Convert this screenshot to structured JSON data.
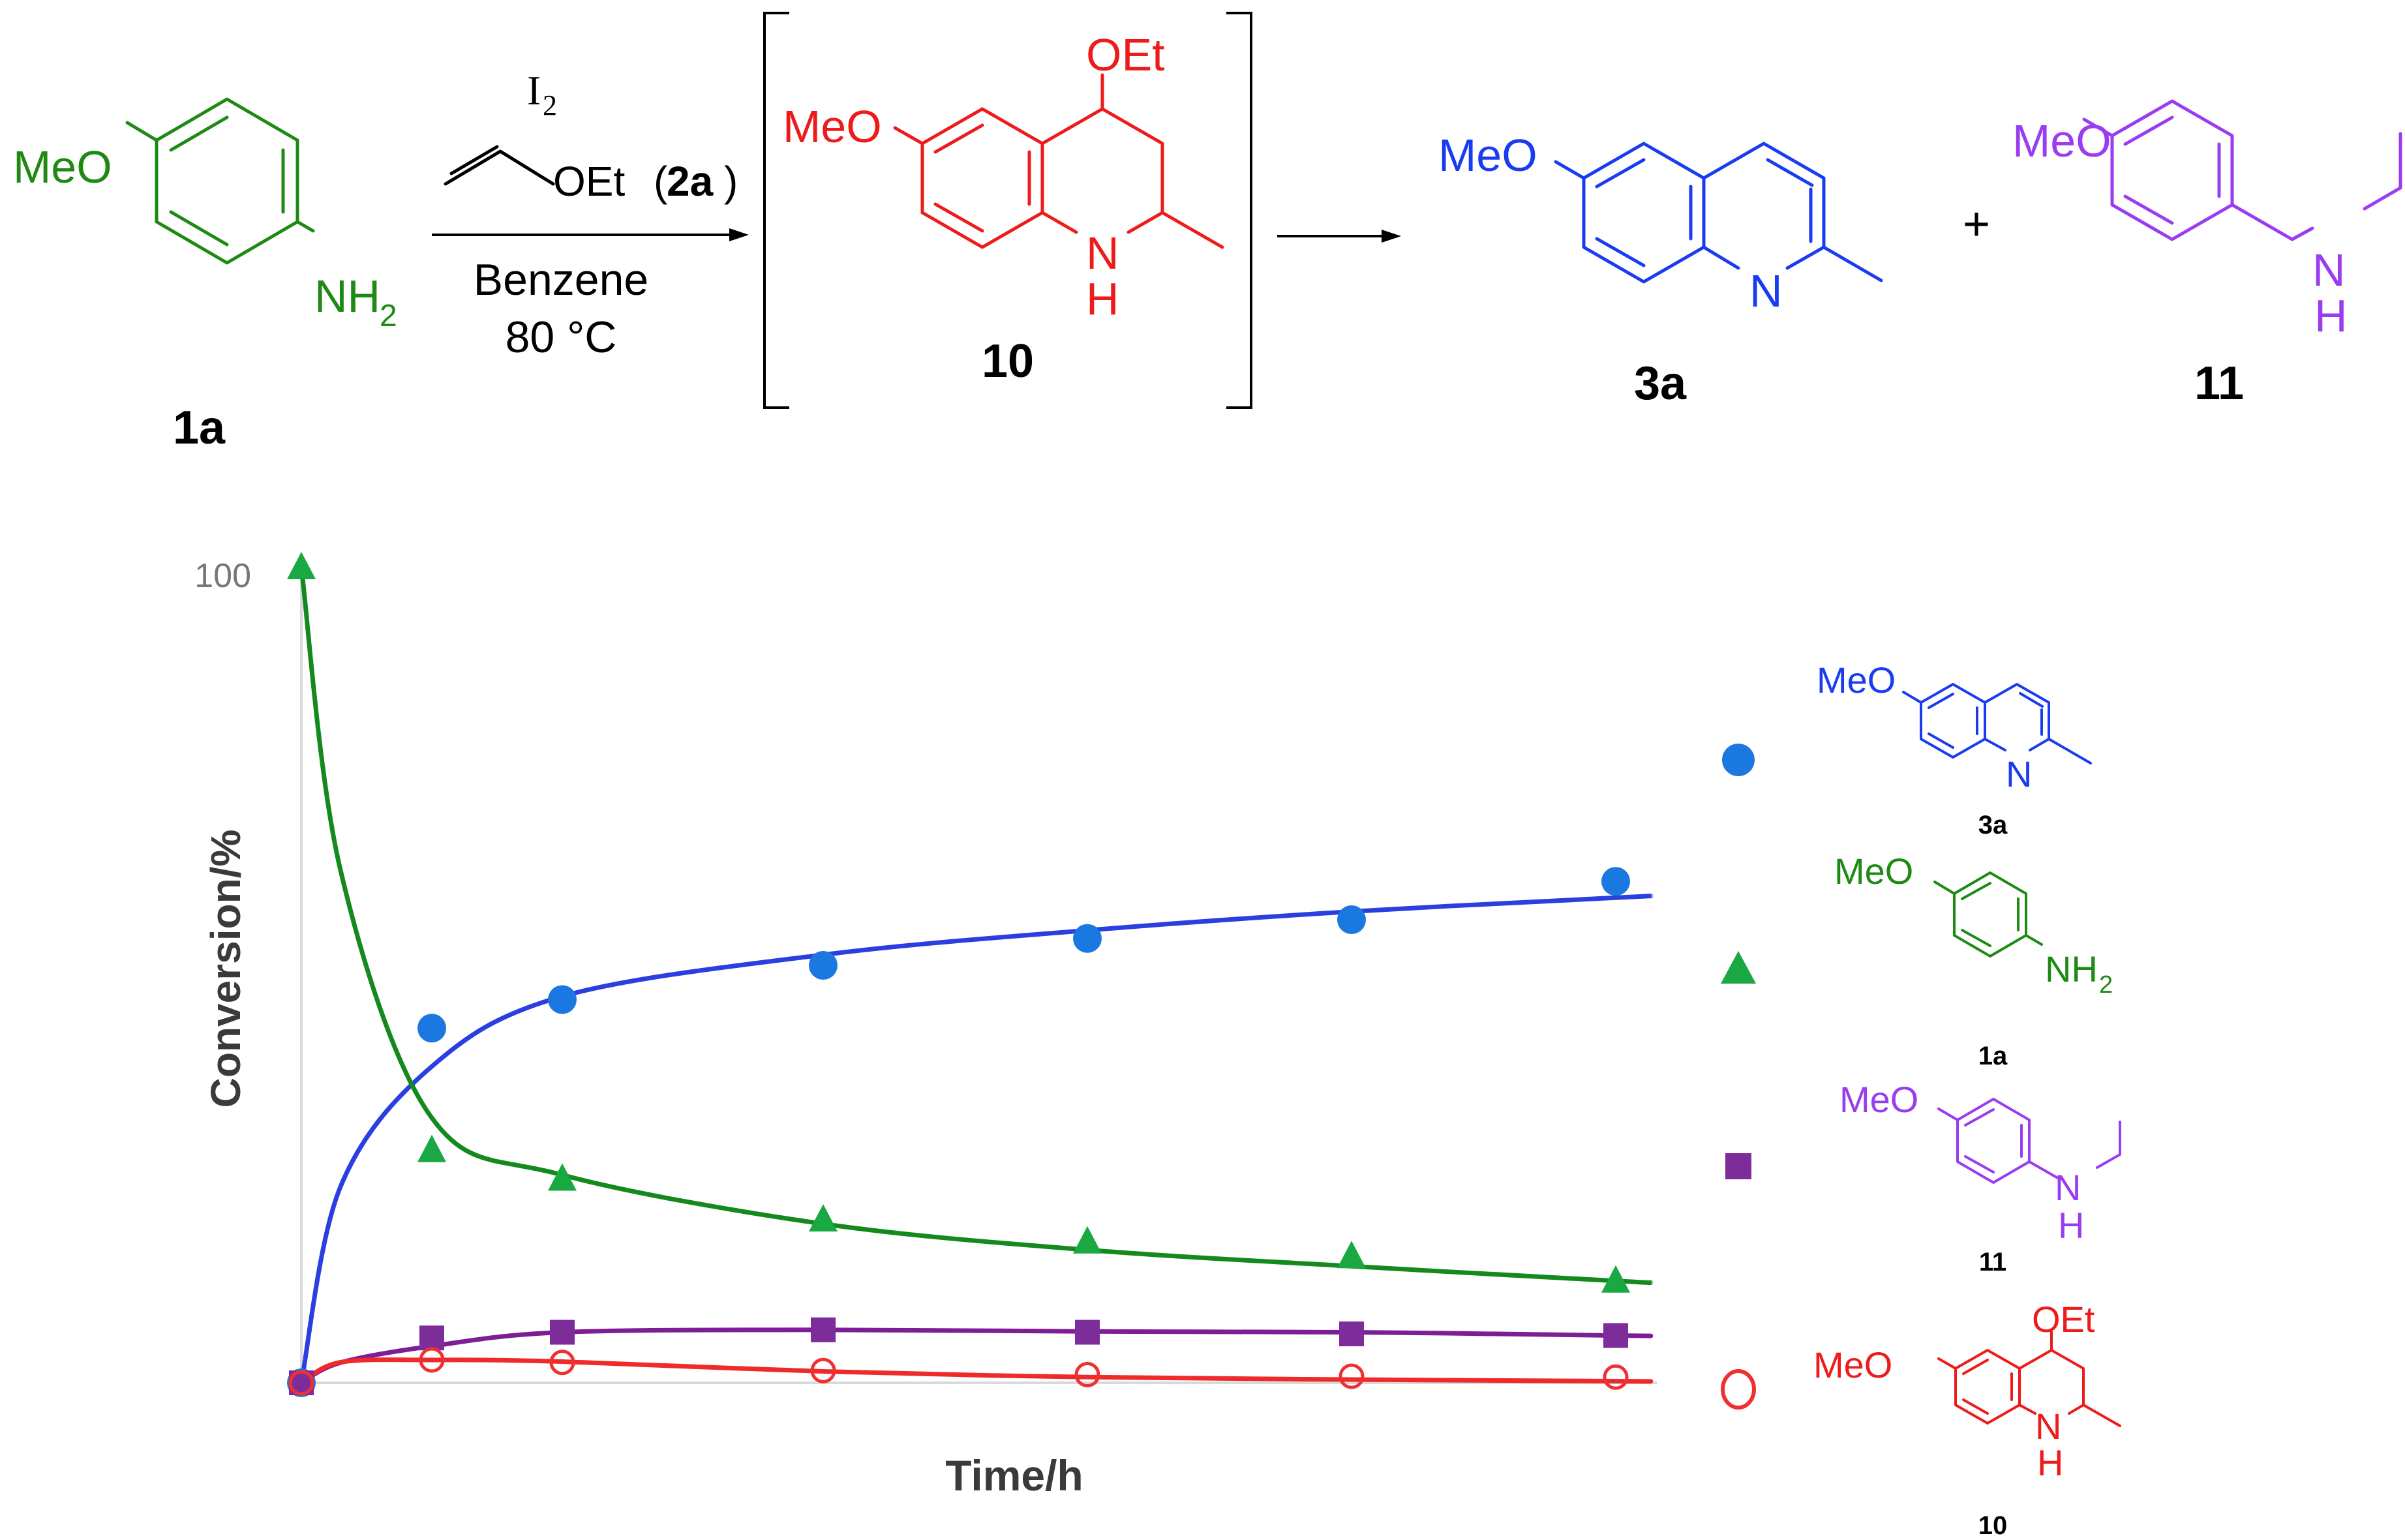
{
  "colors": {
    "quinoline": "#1a3cf0",
    "aniline": "#1e8a14",
    "ethylaniline": "#9a3cf0",
    "intermediate": "#ee1b1b",
    "fit_blue": "#2b3fe0",
    "fit_green": "#148a1e",
    "fit_purple": "#7d1e96",
    "fit_red": "#ee2a2a",
    "marker_blue": "#1b78e0",
    "marker_green": "#1aa843",
    "marker_purple": "#7d2d9a",
    "marker_red": "#f03030"
  },
  "scheme": {
    "reagent": "I",
    "reagent_sub": "2",
    "vinyl_ether_group": "OEt",
    "reagent_label_open": "(",
    "reagent_label_bold": "2a",
    "reagent_label_close": ")",
    "solvent": "Benzene",
    "temperature": "80 °C",
    "plus": "+",
    "compounds": {
      "c1a": {
        "label": "1a",
        "meo": "MeO",
        "amine": "NH",
        "amine_sub": "2"
      },
      "c10": {
        "label": "10",
        "meo": "MeO",
        "oet": "OEt",
        "n": "N",
        "h": "H"
      },
      "c3a": {
        "label": "3a",
        "meo": "MeO",
        "n": "N"
      },
      "c11": {
        "label": "11",
        "meo": "MeO",
        "n": "N",
        "h": "H"
      }
    }
  },
  "chart_data": {
    "type": "scatter",
    "title": "",
    "xlabel": "Time/h",
    "ylabel": "Conversion/%",
    "ylim": [
      0,
      100
    ],
    "xlim": [
      0,
      10
    ],
    "y_tick_labels": [
      "100"
    ],
    "x_tick_labels": [],
    "grid": false,
    "legend_position": "right",
    "x": [
      0,
      1,
      2,
      4,
      6,
      8,
      10
    ],
    "series": [
      {
        "name": "3a",
        "marker": "filled-circle",
        "values": [
          0,
          43.5,
          47,
          51.2,
          54.5,
          56.8,
          61.5
        ]
      },
      {
        "name": "1a",
        "marker": "filled-triangle",
        "values": [
          100,
          28.5,
          25,
          20,
          17.3,
          15.5,
          12.5
        ]
      },
      {
        "name": "11",
        "marker": "filled-square",
        "values": [
          0,
          5.5,
          6.2,
          6.5,
          6.2,
          6,
          5.8
        ]
      },
      {
        "name": "10",
        "marker": "open-circle",
        "values": [
          0,
          2.8,
          2.5,
          1.5,
          1,
          0.8,
          0.7
        ]
      }
    ],
    "fitted_curves": [
      {
        "name": "3a",
        "values": [
          0,
          38.8,
          47.4,
          52.5,
          55.5,
          57.8,
          59.5
        ]
      },
      {
        "name": "1a",
        "values": [
          100,
          32.5,
          25.5,
          19.5,
          16.3,
          14.3,
          12.5
        ]
      },
      {
        "name": "11",
        "values": [
          0,
          4.5,
          6.2,
          6.5,
          6.3,
          6.2,
          5.8
        ]
      },
      {
        "name": "10",
        "values": [
          0,
          2.8,
          2.6,
          1.4,
          0.7,
          0.4,
          0.2
        ]
      }
    ]
  }
}
